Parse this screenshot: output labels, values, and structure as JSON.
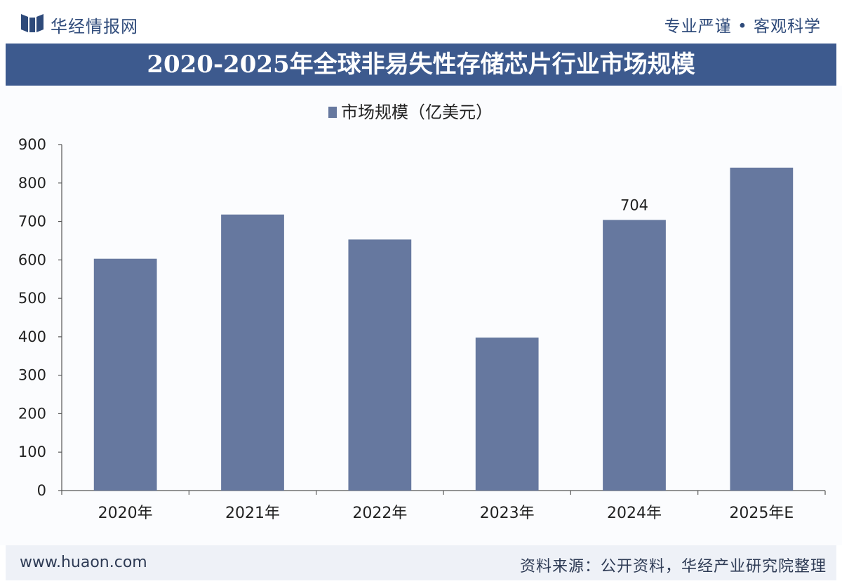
{
  "header": {
    "brand": "华经情报网",
    "slogan": "专业严谨 • 客观科学"
  },
  "title": "2020-2025年全球非易失性存储芯片行业市场规模",
  "footer": {
    "url": "www.huaon.com",
    "source": "资料来源：公开资料，华经产业研究院整理"
  },
  "colors": {
    "bar": "#66789f",
    "title_band": "#3d5a8e",
    "brand": "#2e4a7a"
  },
  "chart_data": {
    "type": "bar",
    "categories": [
      "2020年",
      "2021年",
      "2022年",
      "2023年",
      "2024年",
      "2025年E"
    ],
    "series": [
      {
        "name": "市场规模（亿美元）",
        "values": [
          603,
          718,
          653,
          398,
          704,
          840
        ],
        "data_labels": [
          null,
          null,
          null,
          null,
          "704",
          null
        ]
      }
    ],
    "ylim": [
      0,
      900
    ],
    "yticks": [
      0,
      100,
      200,
      300,
      400,
      500,
      600,
      700,
      800,
      900
    ],
    "legend_position": "top-center",
    "grid": false
  }
}
